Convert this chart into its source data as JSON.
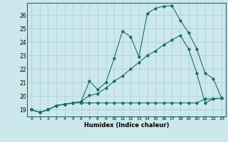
{
  "xlabel": "Humidex (Indice chaleur)",
  "bg_color": "#cce8ec",
  "grid_color": "#aaccd4",
  "line_color": "#1a6b6b",
  "xlim": [
    -0.5,
    23.5
  ],
  "ylim": [
    18.5,
    26.9
  ],
  "yticks": [
    19,
    20,
    21,
    22,
    23,
    24,
    25,
    26
  ],
  "xticks": [
    0,
    1,
    2,
    3,
    4,
    5,
    6,
    7,
    8,
    9,
    10,
    11,
    12,
    13,
    14,
    15,
    16,
    17,
    18,
    19,
    20,
    21,
    22,
    23
  ],
  "series1_x": [
    0,
    1,
    2,
    3,
    4,
    5,
    6,
    7,
    8,
    9,
    10,
    11,
    12,
    13,
    14,
    15,
    16,
    17,
    18,
    19,
    20,
    21,
    22,
    23
  ],
  "series1_y": [
    19.0,
    18.8,
    19.0,
    19.3,
    19.4,
    19.5,
    19.6,
    21.1,
    20.5,
    21.0,
    22.8,
    24.8,
    24.4,
    22.9,
    26.1,
    26.5,
    26.65,
    26.7,
    25.6,
    24.7,
    23.5,
    21.7,
    21.3,
    19.85
  ],
  "series2_x": [
    0,
    1,
    2,
    3,
    4,
    5,
    6,
    7,
    8,
    9,
    10,
    11,
    12,
    13,
    14,
    15,
    16,
    17,
    18,
    19,
    20,
    21,
    22,
    23
  ],
  "series2_y": [
    19.0,
    18.8,
    19.0,
    19.3,
    19.4,
    19.5,
    19.6,
    20.05,
    20.2,
    20.6,
    21.1,
    21.5,
    22.0,
    22.5,
    23.0,
    23.35,
    23.8,
    24.15,
    24.5,
    23.5,
    21.7,
    19.5,
    19.8,
    19.85
  ],
  "series3_x": [
    0,
    1,
    2,
    3,
    4,
    5,
    6,
    7,
    8,
    9,
    10,
    11,
    12,
    13,
    14,
    15,
    16,
    17,
    18,
    19,
    20,
    21,
    22,
    23
  ],
  "series3_y": [
    19.0,
    18.8,
    19.0,
    19.3,
    19.4,
    19.5,
    19.5,
    19.5,
    19.5,
    19.5,
    19.5,
    19.5,
    19.5,
    19.5,
    19.5,
    19.5,
    19.5,
    19.5,
    19.5,
    19.5,
    19.5,
    19.8,
    19.8,
    19.85
  ]
}
